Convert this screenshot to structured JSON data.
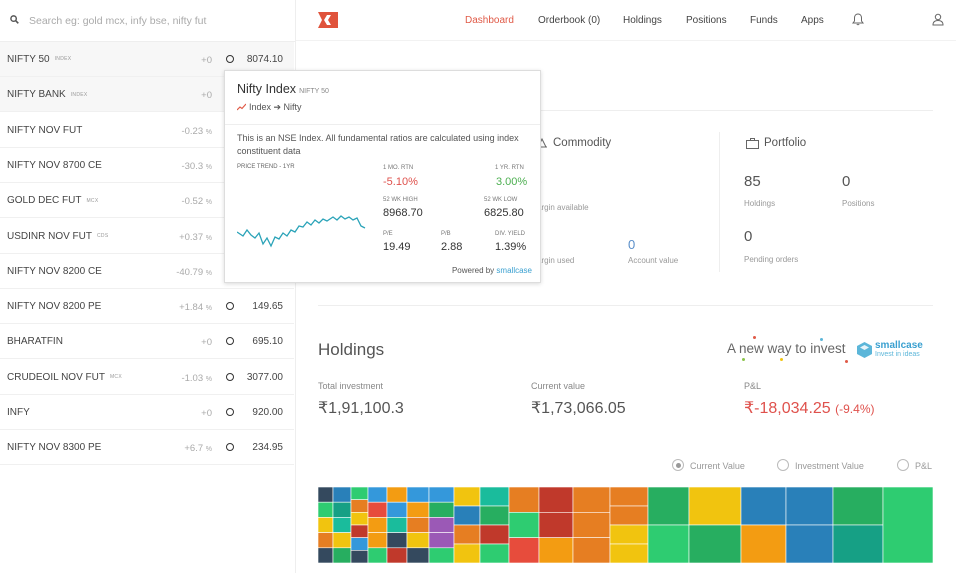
{
  "search": {
    "placeholder": "Search eg: gold mcx, infy bse, nifty fut"
  },
  "watchlist": [
    {
      "name": "NIFTY 50",
      "tag": "INDEX",
      "change": "+0",
      "pct": "",
      "price": "8074.10"
    },
    {
      "name": "NIFTY BANK",
      "tag": "INDEX",
      "change": "+0",
      "pct": "",
      "price": ""
    },
    {
      "name": "NIFTY NOV FUT",
      "tag": "",
      "change": "-0.23",
      "pct": "%",
      "price": ""
    },
    {
      "name": "NIFTY NOV 8700 CE",
      "tag": "",
      "change": "-30.3",
      "pct": "%",
      "price": ""
    },
    {
      "name": "GOLD DEC FUT",
      "tag": "MCX",
      "change": "-0.52",
      "pct": "%",
      "price": ""
    },
    {
      "name": "USDINR NOV FUT",
      "tag": "CDS",
      "change": "+0.37",
      "pct": "%",
      "price": ""
    },
    {
      "name": "NIFTY NOV 8200 CE",
      "tag": "",
      "change": "-40.79",
      "pct": "%",
      "price": ""
    },
    {
      "name": "NIFTY NOV 8200 PE",
      "tag": "",
      "change": "+1.84",
      "pct": "%",
      "price": "149.65"
    },
    {
      "name": "BHARATFIN",
      "tag": "",
      "change": "+0",
      "pct": "",
      "price": "695.10"
    },
    {
      "name": "CRUDEOIL NOV FUT",
      "tag": "MCX",
      "change": "-1.03",
      "pct": "%",
      "price": "3077.00"
    },
    {
      "name": "INFY",
      "tag": "",
      "change": "+0",
      "pct": "",
      "price": "920.00"
    },
    {
      "name": "NIFTY NOV 8300 PE",
      "tag": "",
      "change": "+6.7",
      "pct": "%",
      "price": "234.95"
    }
  ],
  "nav": {
    "dashboard": "Dashboard",
    "orderbook": "Orderbook (0)",
    "holdings": "Holdings",
    "positions": "Positions",
    "funds": "Funds",
    "apps": "Apps"
  },
  "commodity": {
    "title": "Commodity",
    "value": ")",
    "margin_available": "argin available",
    "margin_used": "argin used",
    "account_value_num": "0",
    "account_value": "Account value"
  },
  "portfolio": {
    "title": "Portfolio",
    "holdings_num": "85",
    "holdings_label": "Holdings",
    "positions_num": "0",
    "positions_label": "Positions",
    "pending_num": "0",
    "pending_label": "Pending orders"
  },
  "holdings": {
    "title": "Holdings",
    "total_investment_label": "Total investment",
    "total_investment": "₹1,91,100.3",
    "current_value_label": "Current value",
    "current_value": "₹1,73,066.05",
    "pnl_label": "P&L",
    "pnl": "₹-18,034.25",
    "pnl_pct": "(-9.4%)"
  },
  "promo": {
    "text": "A new way to invest",
    "brand": "smallcase",
    "tagline": "Invest in ideas"
  },
  "view_options": {
    "current": "Current Value",
    "investment": "Investment Value",
    "pnl": "P&L",
    "selected": "current"
  },
  "popup": {
    "title": "Nifty Index",
    "subtitle": "NIFTY 50",
    "crumb": "Index ➔ Nifty",
    "description": "This is an NSE Index. All fundamental ratios are calculated using index constituent data",
    "trend_label": "PRICE TREND - 1YR",
    "stats": {
      "mo1_label": "1 MO. RTN",
      "mo1": "-5.10%",
      "yr1_label": "1 YR. RTN",
      "yr1": "3.00%",
      "high_label": "52 WK HIGH",
      "high": "8968.70",
      "low_label": "52 WK LOW",
      "low": "6825.80",
      "pe_label": "P/E",
      "pe": "19.49",
      "pb_label": "P/B",
      "pb": "2.88",
      "dy_label": "DIV. YIELD",
      "dy": "1.39%"
    },
    "footer_prefix": "Powered by",
    "footer_brand": "smallcase",
    "spark_color": "#2aa3b8"
  },
  "colors": {
    "accent": "#e05a47",
    "negative": "#df514c",
    "positive": "#4caf50",
    "link": "#5b8fc9"
  }
}
